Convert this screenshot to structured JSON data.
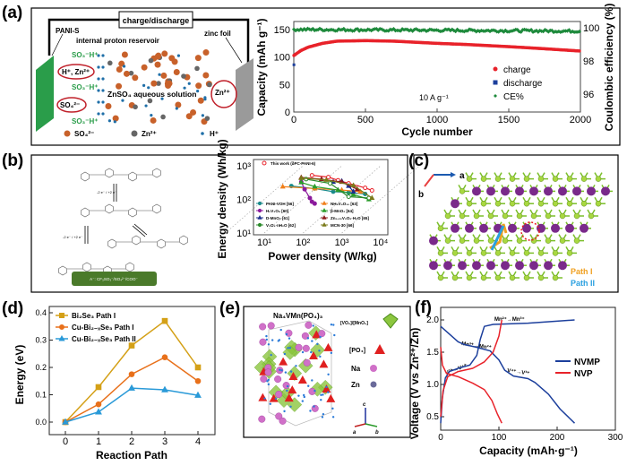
{
  "panels": {
    "a": "(a)",
    "b": "(b)",
    "c": "(c)",
    "d": "(d)",
    "e": "(e)",
    "f": "(f)"
  },
  "schematic_a": {
    "circuit_label": "charge/discharge",
    "electrode_left": "PANI-S",
    "reservoir": "internal proton reservoir",
    "zinc": "zinc foil",
    "solution": "ZnSO₄ aqueous solution",
    "so3h": "SO₃⁻H⁺",
    "hzn": "H⁺, Zn²⁺",
    "so4": "SO₄²⁻",
    "zn_ion": "Zn²⁺",
    "legend": [
      "SO₄²⁻",
      "Zn²⁺",
      "H⁺"
    ],
    "colors": {
      "electrode": "#2a9d4a",
      "zinc": "#9a9a9a",
      "so4": "#c8612a",
      "zn": "#666666",
      "h": "#1f6fa8",
      "text_green": "#2a9d4a"
    }
  },
  "chart_data": [
    {
      "panel": "a",
      "type": "scatter",
      "xlabel": "Cycle number",
      "ylabel": "Capacity (mAh g⁻¹)",
      "y2label": "Coulombic efficiency (%)",
      "xlim": [
        0,
        2000
      ],
      "ylim": [
        0,
        160
      ],
      "y2lim": [
        95,
        100.4
      ],
      "xticks": [
        0,
        500,
        1000,
        1500,
        2000
      ],
      "yticks": [
        0,
        50,
        100,
        150
      ],
      "y2ticks": [
        96,
        98,
        100
      ],
      "annotation": "10 A g⁻¹",
      "series": [
        {
          "name": "charge",
          "color": "#e8222a",
          "axis": "left",
          "points": [
            [
              1,
              103
            ],
            [
              50,
              112
            ],
            [
              100,
              118
            ],
            [
              200,
              125
            ],
            [
              300,
              129
            ],
            [
              500,
              130
            ],
            [
              700,
              129
            ],
            [
              1000,
              125
            ],
            [
              1200,
              123
            ],
            [
              1500,
              119
            ],
            [
              1700,
              116
            ],
            [
              2000,
              111
            ]
          ]
        },
        {
          "name": "discharge",
          "color": "#1c3f9c",
          "axis": "left",
          "points": [
            [
              1,
              86
            ]
          ]
        },
        {
          "name": "CE%",
          "color": "#1e8a3c",
          "axis": "right",
          "points": [
            [
              1,
              99.9
            ],
            [
              2000,
              99.8
            ]
          ]
        }
      ]
    },
    {
      "panel": "b",
      "type": "line",
      "xscale": "log",
      "yscale": "log",
      "xlabel": "Power density (W/kg)",
      "ylabel": "Energy density (Wh/kg)",
      "xlim": [
        10,
        10000
      ],
      "ylim": [
        10,
        1000
      ],
      "xticks": [
        "10¹",
        "10²",
        "10³",
        "10⁴"
      ],
      "yticks": [
        "10¹",
        "10²",
        "10³"
      ],
      "legend_top": "This work (δPC-PANI-6)",
      "series": [
        {
          "name": "This work (δPC-PANI-6)",
          "color": "#e8222a",
          "points": [
            [
              170,
              520
            ],
            [
              450,
              460
            ],
            [
              800,
              370
            ],
            [
              1500,
              300
            ],
            [
              4000,
              220
            ],
            [
              6000,
              185
            ]
          ]
        },
        {
          "name": "PANI-VOH [56]",
          "color": "#1a8a8a",
          "points": [
            [
              50,
              250
            ],
            [
              200,
              210
            ],
            [
              600,
              170
            ],
            [
              1500,
              160
            ],
            [
              4000,
              145
            ]
          ]
        },
        {
          "name": "NH₄V₄O₁₀ [63]",
          "color": "#f07f1a",
          "points": [
            [
              30,
              240
            ],
            [
              200,
              210
            ],
            [
              1000,
              190
            ],
            [
              3000,
              170
            ]
          ]
        },
        {
          "name": "H₂V₃O₈ [60]",
          "color": "#8b1a9c",
          "points": [
            [
              90,
              330
            ],
            [
              110,
              200
            ],
            [
              150,
              110
            ],
            [
              170,
              85
            ],
            [
              200,
              75
            ]
          ]
        },
        {
          "name": "β-MnO₂ [64]",
          "color": "#2a9d2a",
          "points": [
            [
              90,
              320
            ],
            [
              200,
              240
            ],
            [
              800,
              190
            ],
            [
              2000,
              140
            ],
            [
              5000,
              100
            ]
          ]
        },
        {
          "name": "D-MnO₂ [61]",
          "color": "#1c2f8c",
          "points": [
            [
              600,
              330
            ],
            [
              1000,
              350
            ],
            [
              1500,
              250
            ],
            [
              2000,
              170
            ]
          ]
        },
        {
          "name": "Zn₀.₂₅V₂O₅·H₂O [65]",
          "color": "#8b1a1a",
          "points": [
            [
              90,
              450
            ],
            [
              300,
              400
            ],
            [
              1000,
              330
            ],
            [
              2500,
              200
            ]
          ]
        },
        {
          "name": "V₂O₅·nH₂O [62]",
          "color": "#2a8a2a",
          "points": [
            [
              120,
              400
            ],
            [
              500,
              300
            ],
            [
              1500,
              120
            ],
            [
              5000,
              110
            ]
          ]
        },
        {
          "name": "MCN-30 [66]",
          "color": "#7a7a1a",
          "points": [
            [
              90,
              430
            ],
            [
              400,
              380
            ],
            [
              2000,
              260
            ],
            [
              6000,
              110
            ]
          ]
        }
      ]
    },
    {
      "panel": "d",
      "type": "line",
      "xlabel": "Reaction Path",
      "ylabel": "Energy (eV)",
      "xlim": [
        -0.5,
        4.5
      ],
      "ylim": [
        -0.05,
        0.42
      ],
      "xticks": [
        0,
        1,
        2,
        3,
        4
      ],
      "yticks": [
        0.0,
        0.1,
        0.2,
        0.3,
        0.4
      ],
      "legend": "top-left",
      "categories": [
        0,
        1,
        2,
        3,
        4
      ],
      "series": [
        {
          "name": "Bi₂Se₃ Path I",
          "color": "#d4a017",
          "marker": "square",
          "values": [
            0,
            0.128,
            0.28,
            0.37,
            0.2
          ]
        },
        {
          "name": "Cu-Bi₂₋ₓSe₃ Path I",
          "color": "#e8701a",
          "marker": "circle",
          "values": [
            0,
            0.065,
            0.175,
            0.237,
            0.15
          ]
        },
        {
          "name": "Cu-Bi₂₋ₓSe₃ Path II",
          "color": "#2a9ad8",
          "marker": "triangle",
          "values": [
            0,
            0.037,
            0.124,
            0.118,
            0.098
          ]
        }
      ]
    },
    {
      "panel": "f",
      "type": "line",
      "xlabel": "Capacity (mAh·g⁻¹)",
      "ylabel": "Voltage (V vs Zn²⁺/Zn)",
      "xlim": [
        0,
        300
      ],
      "ylim": [
        0.25,
        2.2
      ],
      "xticks": [
        0,
        100,
        200,
        300
      ],
      "yticks": [
        0.5,
        1.0,
        1.5,
        2.0
      ],
      "legend": "right",
      "annotations": [
        "Mn²⁺→Mn³⁺",
        "Mn³⁺→Mn²⁺",
        "V³⁺→V⁴⁺",
        "V⁴⁺→V³⁺"
      ],
      "series": [
        {
          "name": "NVMP",
          "color": "#1c3f9c",
          "curves": [
            [
              [
                0,
                0.4
              ],
              [
                3,
                0.8
              ],
              [
                8,
                1.1
              ],
              [
                15,
                1.2
              ],
              [
                30,
                1.25
              ],
              [
                50,
                1.3
              ],
              [
                62,
                1.45
              ],
              [
                68,
                1.7
              ],
              [
                75,
                1.9
              ],
              [
                90,
                1.93
              ],
              [
                150,
                1.95
              ],
              [
                230,
                2.0
              ]
            ],
            [
              [
                0,
                1.9
              ],
              [
                15,
                1.78
              ],
              [
                30,
                1.66
              ],
              [
                40,
                1.62
              ],
              [
                60,
                1.58
              ],
              [
                85,
                1.52
              ],
              [
                100,
                1.38
              ],
              [
                110,
                1.22
              ],
              [
                125,
                1.13
              ],
              [
                150,
                1.09
              ],
              [
                162,
                1.03
              ],
              [
                185,
                0.85
              ],
              [
                205,
                0.62
              ],
              [
                230,
                0.4
              ]
            ]
          ]
        },
        {
          "name": "NVP",
          "color": "#e8222a",
          "curves": [
            [
              [
                0,
                0.5
              ],
              [
                4,
                0.9
              ],
              [
                12,
                1.12
              ],
              [
                30,
                1.2
              ],
              [
                55,
                1.25
              ],
              [
                75,
                1.35
              ],
              [
                90,
                1.5
              ],
              [
                100,
                1.75
              ],
              [
                105,
                2.0
              ]
            ],
            [
              [
                0,
                1.58
              ],
              [
                3,
                1.3
              ],
              [
                10,
                1.17
              ],
              [
                30,
                1.12
              ],
              [
                55,
                1.02
              ],
              [
                75,
                0.92
              ],
              [
                88,
                0.75
              ],
              [
                97,
                0.55
              ],
              [
                105,
                0.4
              ]
            ]
          ]
        }
      ]
    }
  ],
  "panel_b_scheme": {
    "reaction": "-2 e⁻ / +2 e⁻",
    "anion_box": "A⁻: CF₃SO₃⁻/SO₄²⁻/COO⁻",
    "box_color": "#4a7a2a"
  },
  "panel_c": {
    "axis_a": "a",
    "axis_b": "b",
    "path1": "Path I",
    "path2": "Path II",
    "path1_color": "#f0a020",
    "path2_color": "#2aa0e0"
  },
  "panel_e": {
    "title": "Na₄VMn(PO₄)₃",
    "octa": "[VO₆]/[MnO₆]",
    "po4": "[PO₄]",
    "na": "Na",
    "zn": "Zn",
    "axis_a": "a",
    "axis_b": "b",
    "axis_c": "c"
  }
}
